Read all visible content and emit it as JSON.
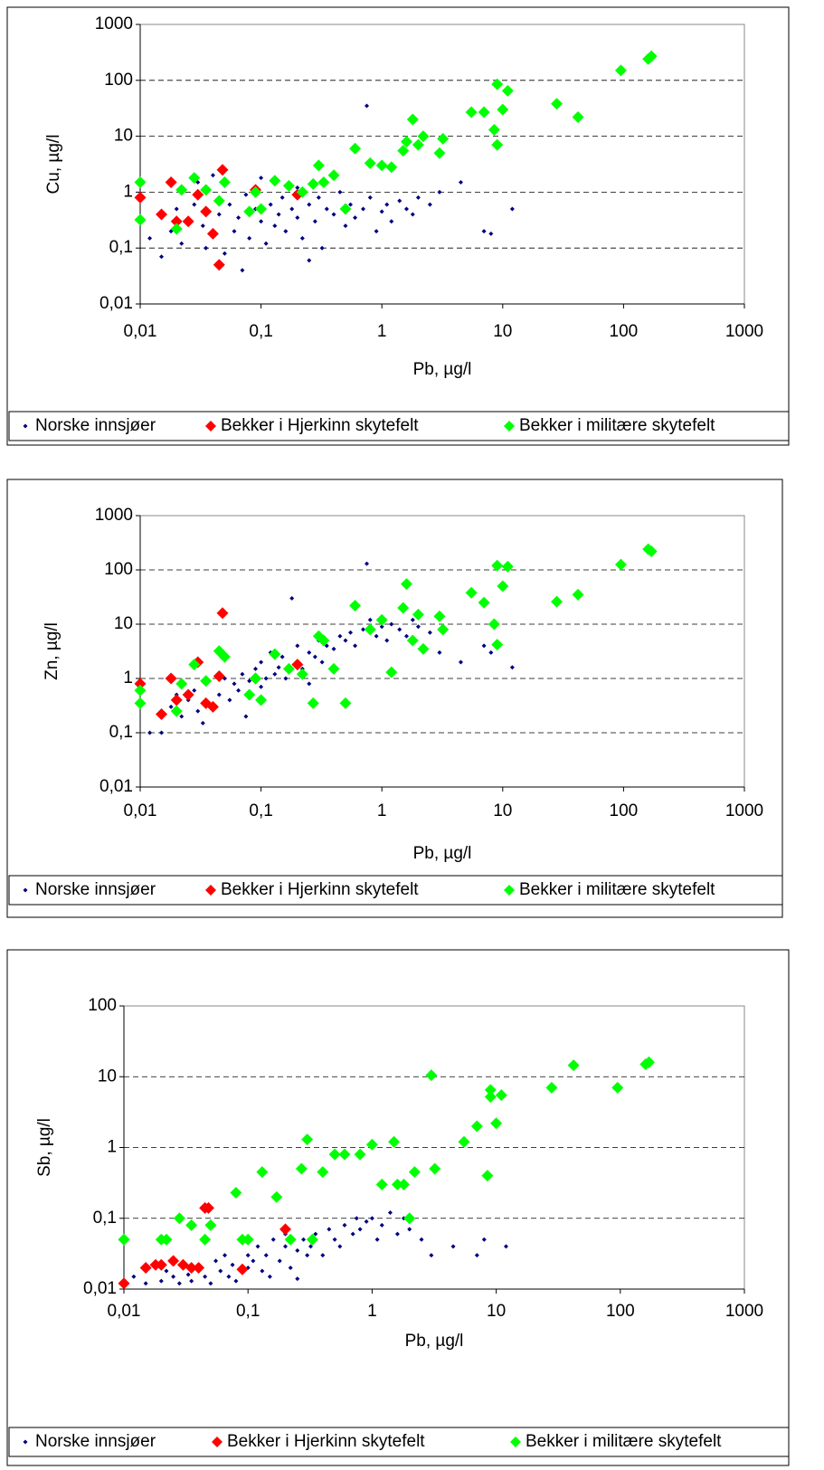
{
  "chart_data": [
    {
      "type": "scatter",
      "xlabel": "Pb, µg/l",
      "ylabel": "Cu, µg/l",
      "log_x": true,
      "log_y": true,
      "grid": true,
      "legend": "bottom",
      "xlim": [
        0.01,
        1000
      ],
      "ylim": [
        0.01,
        1000
      ],
      "xticks": [
        {
          "value": 0.01,
          "label": "0,01"
        },
        {
          "value": 0.1,
          "label": "0,1"
        },
        1,
        10,
        100,
        1000
      ],
      "yticks": [
        {
          "value": 0.01,
          "label": "0,01"
        },
        {
          "value": 0.1,
          "label": "0,1"
        },
        1,
        10,
        100,
        1000
      ],
      "series": [
        {
          "name": "Norske innsjøer",
          "color": "#000080",
          "x": [
            0.012,
            0.015,
            0.018,
            0.02,
            0.022,
            0.025,
            0.028,
            0.03,
            0.033,
            0.035,
            0.04,
            0.045,
            0.05,
            0.055,
            0.06,
            0.065,
            0.07,
            0.075,
            0.08,
            0.09,
            0.1,
            0.1,
            0.11,
            0.12,
            0.13,
            0.14,
            0.15,
            0.16,
            0.18,
            0.2,
            0.2,
            0.22,
            0.25,
            0.28,
            0.3,
            0.32,
            0.35,
            0.4,
            0.45,
            0.5,
            0.55,
            0.6,
            0.7,
            0.8,
            0.9,
            1.0,
            1.1,
            1.2,
            1.4,
            1.6,
            1.8,
            2.0,
            2.5,
            3.0,
            4.5,
            7.0,
            8.0,
            12,
            0.75,
            0.25
          ],
          "y": [
            0.15,
            0.07,
            0.2,
            0.5,
            0.12,
            0.3,
            0.6,
            1.5,
            0.25,
            0.1,
            2.0,
            0.4,
            0.08,
            0.6,
            0.2,
            0.35,
            0.04,
            0.9,
            0.15,
            0.5,
            0.3,
            1.8,
            0.12,
            0.6,
            0.25,
            0.4,
            0.8,
            0.2,
            0.5,
            0.35,
            1.2,
            0.15,
            0.6,
            0.3,
            0.8,
            0.1,
            0.5,
            0.4,
            1.0,
            0.25,
            0.6,
            0.35,
            0.5,
            0.8,
            0.2,
            0.45,
            0.6,
            0.3,
            0.7,
            0.5,
            0.4,
            0.8,
            0.6,
            1.0,
            1.5,
            0.2,
            0.18,
            0.5,
            35,
            0.06
          ]
        },
        {
          "name": "Bekker i Hjerkinn skytefelt",
          "color": "#ff0000",
          "x": [
            0.01,
            0.015,
            0.018,
            0.02,
            0.025,
            0.03,
            0.035,
            0.04,
            0.045,
            0.048,
            0.09,
            0.2
          ],
          "y": [
            0.8,
            0.4,
            1.5,
            0.3,
            0.3,
            0.9,
            0.45,
            0.18,
            0.05,
            2.5,
            1.1,
            0.9
          ]
        },
        {
          "name": "Bekker i militære skytefelt",
          "color": "#00ff00",
          "x": [
            0.01,
            0.01,
            0.02,
            0.022,
            0.028,
            0.035,
            0.045,
            0.05,
            0.08,
            0.09,
            0.1,
            0.13,
            0.17,
            0.22,
            0.27,
            0.3,
            0.33,
            0.4,
            0.5,
            0.6,
            0.8,
            1.0,
            1.2,
            1.5,
            1.6,
            1.8,
            2.0,
            2.2,
            3.0,
            3.2,
            5.5,
            7,
            8.5,
            9,
            9,
            10,
            11,
            28,
            42,
            95,
            160,
            170
          ],
          "y": [
            1.5,
            0.32,
            0.22,
            1.1,
            1.8,
            1.1,
            0.7,
            1.5,
            0.45,
            1.0,
            0.5,
            1.6,
            1.3,
            1.0,
            1.4,
            3.0,
            1.5,
            2.0,
            0.5,
            6,
            3.3,
            3.0,
            2.8,
            5.5,
            8,
            20,
            7,
            10,
            5,
            9,
            27,
            27,
            13,
            85,
            7,
            30,
            65,
            38,
            22,
            150,
            240,
            270
          ]
        }
      ]
    },
    {
      "type": "scatter",
      "xlabel": "Pb, µg/l",
      "ylabel": "Zn, µg/l",
      "log_x": true,
      "log_y": true,
      "grid": true,
      "legend": "bottom",
      "xlim": [
        0.01,
        1000
      ],
      "ylim": [
        0.01,
        1000
      ],
      "xticks": [
        {
          "value": 0.01,
          "label": "0,01"
        },
        {
          "value": 0.1,
          "label": "0,1"
        },
        1,
        10,
        100,
        1000
      ],
      "yticks": [
        {
          "value": 0.01,
          "label": "0,01"
        },
        {
          "value": 0.1,
          "label": "0,1"
        },
        1,
        10,
        100,
        1000
      ],
      "series": [
        {
          "name": "Norske innsjøer",
          "color": "#000080",
          "x": [
            0.012,
            0.015,
            0.018,
            0.02,
            0.022,
            0.025,
            0.028,
            0.03,
            0.033,
            0.035,
            0.04,
            0.045,
            0.05,
            0.055,
            0.06,
            0.065,
            0.07,
            0.075,
            0.08,
            0.09,
            0.1,
            0.1,
            0.11,
            0.12,
            0.13,
            0.14,
            0.15,
            0.16,
            0.18,
            0.2,
            0.2,
            0.22,
            0.25,
            0.28,
            0.3,
            0.32,
            0.35,
            0.4,
            0.45,
            0.5,
            0.55,
            0.6,
            0.7,
            0.8,
            0.9,
            1.0,
            1.1,
            1.2,
            1.4,
            1.6,
            1.8,
            2.0,
            2.5,
            3.0,
            4.5,
            7.0,
            8.0,
            12,
            0.75,
            0.25
          ],
          "y": [
            0.1,
            0.1,
            0.3,
            0.5,
            0.2,
            0.4,
            0.6,
            0.25,
            0.15,
            0.9,
            0.3,
            0.5,
            1.0,
            0.4,
            0.8,
            0.6,
            1.2,
            0.2,
            0.9,
            1.5,
            0.7,
            2.0,
            1.0,
            3.0,
            1.2,
            1.6,
            2.5,
            1.0,
            30,
            2.0,
            4.0,
            1.5,
            3.0,
            2.5,
            5.0,
            2.0,
            4.0,
            3.5,
            6.0,
            5.0,
            7.0,
            4.0,
            8.0,
            12,
            6.0,
            9.0,
            5.0,
            10,
            8.0,
            6.0,
            12,
            9.0,
            7.0,
            3.0,
            2.0,
            4.0,
            3.0,
            1.6,
            130,
            0.8
          ]
        },
        {
          "name": "Bekker i Hjerkinn skytefelt",
          "color": "#ff0000",
          "x": [
            0.01,
            0.015,
            0.018,
            0.02,
            0.025,
            0.03,
            0.035,
            0.04,
            0.045,
            0.048,
            0.09,
            0.2
          ],
          "y": [
            0.8,
            0.22,
            1.0,
            0.4,
            0.5,
            2.0,
            0.35,
            0.3,
            1.1,
            16,
            1.0,
            1.8
          ]
        },
        {
          "name": "Bekker i militære skytefelt",
          "color": "#00ff00",
          "x": [
            0.01,
            0.01,
            0.02,
            0.022,
            0.028,
            0.035,
            0.045,
            0.05,
            0.08,
            0.09,
            0.1,
            0.13,
            0.17,
            0.22,
            0.27,
            0.3,
            0.33,
            0.4,
            0.5,
            0.6,
            0.8,
            1.0,
            1.2,
            1.5,
            1.6,
            1.8,
            2.0,
            2.2,
            3.0,
            3.2,
            5.5,
            7,
            8.5,
            9,
            9,
            10,
            11,
            28,
            42,
            95,
            160,
            170
          ],
          "y": [
            0.6,
            0.35,
            0.25,
            0.8,
            1.8,
            0.9,
            3.2,
            2.5,
            0.5,
            1.0,
            0.4,
            2.8,
            1.5,
            1.2,
            0.35,
            6,
            5,
            1.5,
            0.35,
            22,
            8,
            12,
            1.3,
            20,
            55,
            5,
            15,
            3.5,
            14,
            8,
            38,
            25,
            10,
            120,
            4.2,
            50,
            115,
            26,
            35,
            125,
            240,
            220
          ]
        }
      ]
    },
    {
      "type": "scatter",
      "xlabel": "Pb, µg/l",
      "ylabel": "Sb, µg/l",
      "log_x": true,
      "log_y": true,
      "grid": true,
      "legend": "bottom",
      "xlim": [
        0.01,
        1000
      ],
      "ylim": [
        0.01,
        100
      ],
      "xticks": [
        {
          "value": 0.01,
          "label": "0,01"
        },
        {
          "value": 0.1,
          "label": "0,1"
        },
        1,
        10,
        100,
        1000
      ],
      "yticks": [
        {
          "value": 0.01,
          "label": "0,01"
        },
        {
          "value": 0.1,
          "label": "0,1"
        },
        1,
        10,
        100
      ],
      "series": [
        {
          "name": "Norske innsjøer",
          "color": "#000080",
          "x": [
            0.012,
            0.015,
            0.018,
            0.02,
            0.022,
            0.025,
            0.028,
            0.03,
            0.033,
            0.035,
            0.04,
            0.045,
            0.05,
            0.055,
            0.06,
            0.065,
            0.07,
            0.075,
            0.08,
            0.09,
            0.1,
            0.1,
            0.11,
            0.12,
            0.13,
            0.14,
            0.15,
            0.16,
            0.18,
            0.2,
            0.2,
            0.22,
            0.25,
            0.28,
            0.3,
            0.32,
            0.35,
            0.4,
            0.45,
            0.5,
            0.55,
            0.6,
            0.7,
            0.8,
            0.9,
            1.0,
            1.1,
            1.2,
            1.4,
            1.6,
            1.8,
            2.0,
            2.5,
            3.0,
            4.5,
            7.0,
            8.0,
            12,
            0.75,
            0.25
          ],
          "y": [
            0.015,
            0.012,
            0.02,
            0.013,
            0.018,
            0.015,
            0.012,
            0.02,
            0.016,
            0.013,
            0.02,
            0.015,
            0.012,
            0.025,
            0.018,
            0.03,
            0.015,
            0.022,
            0.013,
            0.05,
            0.02,
            0.03,
            0.025,
            0.04,
            0.018,
            0.03,
            0.015,
            0.05,
            0.025,
            0.04,
            0.06,
            0.02,
            0.035,
            0.05,
            0.03,
            0.04,
            0.06,
            0.03,
            0.07,
            0.05,
            0.04,
            0.08,
            0.06,
            0.07,
            0.09,
            0.1,
            0.05,
            0.08,
            0.12,
            0.06,
            0.1,
            0.07,
            0.05,
            0.03,
            0.04,
            0.03,
            0.05,
            0.04,
            0.1,
            0.014
          ]
        },
        {
          "name": "Bekker i Hjerkinn skytefelt",
          "color": "#ff0000",
          "x": [
            0.01,
            0.015,
            0.018,
            0.02,
            0.025,
            0.03,
            0.035,
            0.04,
            0.045,
            0.048,
            0.09,
            0.2
          ],
          "y": [
            0.012,
            0.02,
            0.022,
            0.022,
            0.025,
            0.022,
            0.02,
            0.02,
            0.14,
            0.14,
            0.019,
            0.07
          ]
        },
        {
          "name": "Bekker i militære skytefelt",
          "color": "#00ff00",
          "x": [
            0.01,
            0.01,
            0.02,
            0.022,
            0.028,
            0.035,
            0.045,
            0.05,
            0.08,
            0.09,
            0.1,
            0.13,
            0.17,
            0.22,
            0.27,
            0.3,
            0.33,
            0.4,
            0.5,
            0.6,
            0.8,
            1.0,
            1.2,
            1.5,
            1.6,
            1.8,
            2.0,
            2.2,
            3.0,
            3.2,
            5.5,
            7,
            8.5,
            9,
            9,
            10,
            11,
            28,
            42,
            95,
            160,
            170
          ],
          "y": [
            0.05,
            0.05,
            0.05,
            0.05,
            0.1,
            0.08,
            0.05,
            0.08,
            0.23,
            0.05,
            0.05,
            0.45,
            0.2,
            0.05,
            0.5,
            1.3,
            0.05,
            0.45,
            0.8,
            0.8,
            0.8,
            1.1,
            0.3,
            1.2,
            0.3,
            0.3,
            0.1,
            0.45,
            10.5,
            0.5,
            1.2,
            2.0,
            0.4,
            6.5,
            5.2,
            2.2,
            5.5,
            7,
            14.5,
            7,
            15,
            16
          ]
        }
      ]
    }
  ]
}
